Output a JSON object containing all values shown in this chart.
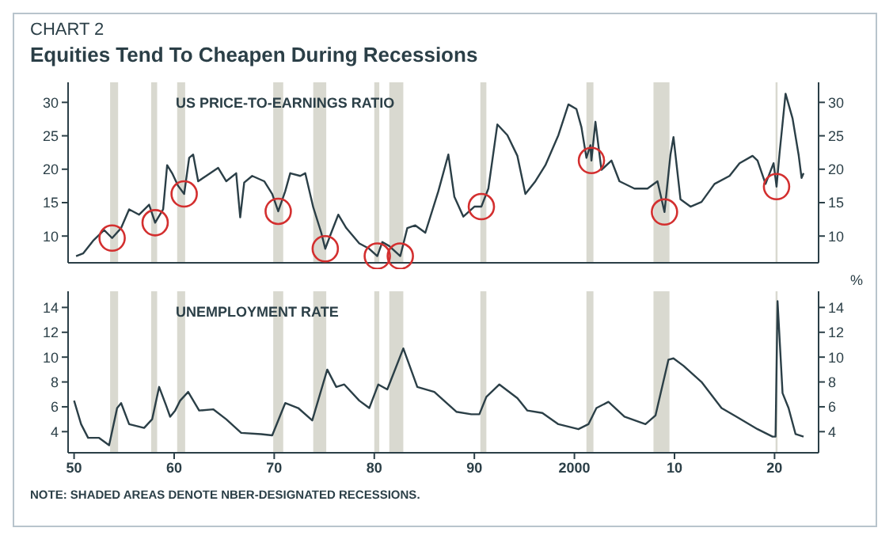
{
  "chart_data": [
    {
      "type": "line",
      "subtitle": "CHART 2",
      "title": "Equities Tend To Cheapen During Recessions",
      "series": [
        {
          "name": "US PRICE-TO-EARNINGS RATIO",
          "color": "#2b3f47",
          "x": [
            1950.2,
            1950.9,
            1951.9,
            1953.0,
            1953.8,
            1954.7,
            1955.5,
            1956.5,
            1957.5,
            1958.1,
            1958.9,
            1959.3,
            1959.8,
            1960.4,
            1961.0,
            1961.5,
            1961.9,
            1962.4,
            1963.2,
            1964.4,
            1965.2,
            1966.2,
            1966.6,
            1967.0,
            1967.8,
            1969.0,
            1969.8,
            1970.4,
            1971.1,
            1971.6,
            1972.6,
            1973.1,
            1973.9,
            1974.7,
            1975.1,
            1975.7,
            1976.4,
            1977.2,
            1978.5,
            1979.5,
            1980.3,
            1980.8,
            1981.5,
            1982.6,
            1983.3,
            1984.1,
            1985.1,
            1986.4,
            1987.4,
            1988.0,
            1988.9,
            1990.0,
            1990.7,
            1991.4,
            1992.3,
            1993.3,
            1994.3,
            1995.1,
            1996.1,
            1997.1,
            1998.4,
            1999.4,
            2000.2,
            2000.7,
            2001.2,
            2001.6,
            2001.7,
            2002.1,
            2002.7,
            2003.7,
            2004.5,
            2006.0,
            2007.3,
            2008.3,
            2009.0,
            2009.6,
            2009.9,
            2010.6,
            2011.6,
            2012.7,
            2014.0,
            2015.5,
            2016.5,
            2017.8,
            2018.3,
            2019.1,
            2019.9,
            2020.2,
            2020.5,
            2021.1,
            2021.8,
            2022.4,
            2022.7,
            2022.9
          ],
          "values": [
            7.0,
            7.4,
            9.3,
            10.9,
            9.7,
            11.2,
            14.0,
            13.2,
            14.7,
            12.0,
            14.0,
            20.6,
            19.4,
            17.5,
            16.3,
            21.7,
            22.2,
            18.2,
            19.0,
            20.2,
            18.2,
            19.4,
            12.8,
            18.0,
            19.0,
            18.2,
            16.3,
            13.7,
            16.7,
            19.4,
            19.0,
            19.4,
            14.3,
            10.5,
            8.1,
            10.5,
            13.2,
            11.2,
            8.9,
            8.1,
            7.0,
            9.1,
            8.5,
            7.0,
            11.2,
            11.6,
            10.5,
            16.7,
            22.2,
            15.9,
            12.9,
            14.4,
            14.4,
            17.1,
            26.7,
            25.1,
            22.0,
            16.3,
            18.2,
            20.6,
            25.1,
            29.7,
            29.0,
            26.3,
            21.7,
            23.6,
            21.3,
            27.1,
            19.9,
            21.3,
            18.2,
            17.1,
            17.1,
            18.2,
            13.6,
            22.2,
            24.8,
            15.5,
            14.4,
            15.1,
            17.8,
            19.0,
            20.9,
            22.0,
            21.3,
            17.8,
            20.9,
            17.4,
            22.4,
            31.3,
            27.6,
            22.2,
            18.7,
            19.4
          ]
        }
      ],
      "xlim": [
        1949.4,
        2024.4
      ],
      "ylim": [
        6,
        33
      ],
      "yticks": [
        10,
        15,
        20,
        25,
        30
      ],
      "y2lim": [
        6,
        33
      ],
      "y2ticks": [
        10,
        15,
        20,
        25,
        30
      ],
      "tick_labels": "y",
      "grid": false,
      "legend": false,
      "bands": [
        {
          "axis": "x",
          "from": 1953.6,
          "to": 1954.4,
          "color": "#d9d9d0"
        },
        {
          "axis": "x",
          "from": 1957.7,
          "to": 1958.3,
          "color": "#d9d9d0"
        },
        {
          "axis": "x",
          "from": 1960.3,
          "to": 1961.1,
          "color": "#d9d9d0"
        },
        {
          "axis": "x",
          "from": 1969.9,
          "to": 1970.9,
          "color": "#d9d9d0"
        },
        {
          "axis": "x",
          "from": 1973.9,
          "to": 1975.2,
          "color": "#d9d9d0"
        },
        {
          "axis": "x",
          "from": 1980.0,
          "to": 1980.5,
          "color": "#d9d9d0"
        },
        {
          "axis": "x",
          "from": 1981.5,
          "to": 1982.9,
          "color": "#d9d9d0"
        },
        {
          "axis": "x",
          "from": 1990.6,
          "to": 1991.2,
          "color": "#d9d9d0"
        },
        {
          "axis": "x",
          "from": 2001.2,
          "to": 2001.9,
          "color": "#d9d9d0"
        },
        {
          "axis": "x",
          "from": 2007.9,
          "to": 2009.5,
          "color": "#d9d9d0"
        },
        {
          "axis": "x",
          "from": 2020.1,
          "to": 2020.3,
          "color": "#d9d9d0"
        }
      ]
    },
    {
      "type": "line",
      "series": [
        {
          "name": "UNEMPLOYMENT RATE",
          "color": "#2b3f47",
          "x": [
            1950.0,
            1950.7,
            1951.4,
            1952.5,
            1953.5,
            1954.3,
            1954.7,
            1955.5,
            1957.0,
            1957.8,
            1958.5,
            1959.2,
            1959.6,
            1960.1,
            1960.6,
            1961.4,
            1962.5,
            1963.9,
            1965.2,
            1966.7,
            1968.7,
            1969.8,
            1971.1,
            1972.4,
            1973.8,
            1975.3,
            1976.2,
            1977.0,
            1978.5,
            1979.5,
            1980.4,
            1981.3,
            1982.9,
            1984.3,
            1986.0,
            1988.2,
            1989.7,
            1990.5,
            1991.2,
            1992.5,
            1994.3,
            1995.3,
            1996.8,
            1998.4,
            2000.4,
            2001.4,
            2002.2,
            2003.4,
            2005.0,
            2007.1,
            2008.1,
            2009.4,
            2009.9,
            2010.9,
            2012.7,
            2014.7,
            2016.2,
            2018.3,
            2019.8,
            2020.1,
            2020.3,
            2020.8,
            2021.4,
            2022.1,
            2022.9
          ],
          "values": [
            6.5,
            4.6,
            3.5,
            3.5,
            2.9,
            5.9,
            6.3,
            4.6,
            4.3,
            5.0,
            7.6,
            6.1,
            5.2,
            5.7,
            6.5,
            7.2,
            5.7,
            5.8,
            5.0,
            3.9,
            3.8,
            3.7,
            6.3,
            5.9,
            4.9,
            9.0,
            7.6,
            7.8,
            6.5,
            5.9,
            7.8,
            7.4,
            10.7,
            7.6,
            7.2,
            5.6,
            5.4,
            5.4,
            6.8,
            7.8,
            6.7,
            5.7,
            5.5,
            4.6,
            4.2,
            4.6,
            5.9,
            6.4,
            5.2,
            4.6,
            5.3,
            9.8,
            9.9,
            9.3,
            8.0,
            5.9,
            5.2,
            4.2,
            3.6,
            3.6,
            14.5,
            7.1,
            5.9,
            3.8,
            3.6
          ]
        }
      ],
      "xlim": [
        1949.4,
        2024.4
      ],
      "xticks": [
        {
          "value": 1950,
          "label": "50"
        },
        {
          "value": 1960,
          "label": "60"
        },
        {
          "value": 1970,
          "label": "70"
        },
        {
          "value": 1980,
          "label": "80"
        },
        {
          "value": 1990,
          "label": "90"
        },
        {
          "value": 2000,
          "label": "2000"
        },
        {
          "value": 2010,
          "label": "10"
        },
        {
          "value": 2020,
          "label": "20"
        }
      ],
      "ylim": [
        2.3,
        15.3
      ],
      "yticks": [
        4,
        6,
        8,
        10,
        12,
        14
      ],
      "y2lim": [
        2.3,
        15.3
      ],
      "y2ticks": [
        4,
        6,
        8,
        10,
        12,
        14
      ],
      "y2label": "%",
      "grid": false,
      "legend": false,
      "annotations": [
        "NOTE: SHADED AREAS DENOTE NBER-DESIGNATED RECESSIONS."
      ],
      "bands": [
        {
          "axis": "x",
          "from": 1953.6,
          "to": 1954.4,
          "color": "#d9d9d0"
        },
        {
          "axis": "x",
          "from": 1957.7,
          "to": 1958.3,
          "color": "#d9d9d0"
        },
        {
          "axis": "x",
          "from": 1960.3,
          "to": 1961.1,
          "color": "#d9d9d0"
        },
        {
          "axis": "x",
          "from": 1969.9,
          "to": 1970.9,
          "color": "#d9d9d0"
        },
        {
          "axis": "x",
          "from": 1973.9,
          "to": 1975.2,
          "color": "#d9d9d0"
        },
        {
          "axis": "x",
          "from": 1980.0,
          "to": 1980.5,
          "color": "#d9d9d0"
        },
        {
          "axis": "x",
          "from": 1981.5,
          "to": 1982.9,
          "color": "#d9d9d0"
        },
        {
          "axis": "x",
          "from": 1990.6,
          "to": 1991.2,
          "color": "#d9d9d0"
        },
        {
          "axis": "x",
          "from": 2001.2,
          "to": 2001.9,
          "color": "#d9d9d0"
        },
        {
          "axis": "x",
          "from": 2007.9,
          "to": 2009.5,
          "color": "#d9d9d0"
        },
        {
          "axis": "x",
          "from": 2020.1,
          "to": 2020.3,
          "color": "#d9d9d0"
        }
      ]
    }
  ]
}
